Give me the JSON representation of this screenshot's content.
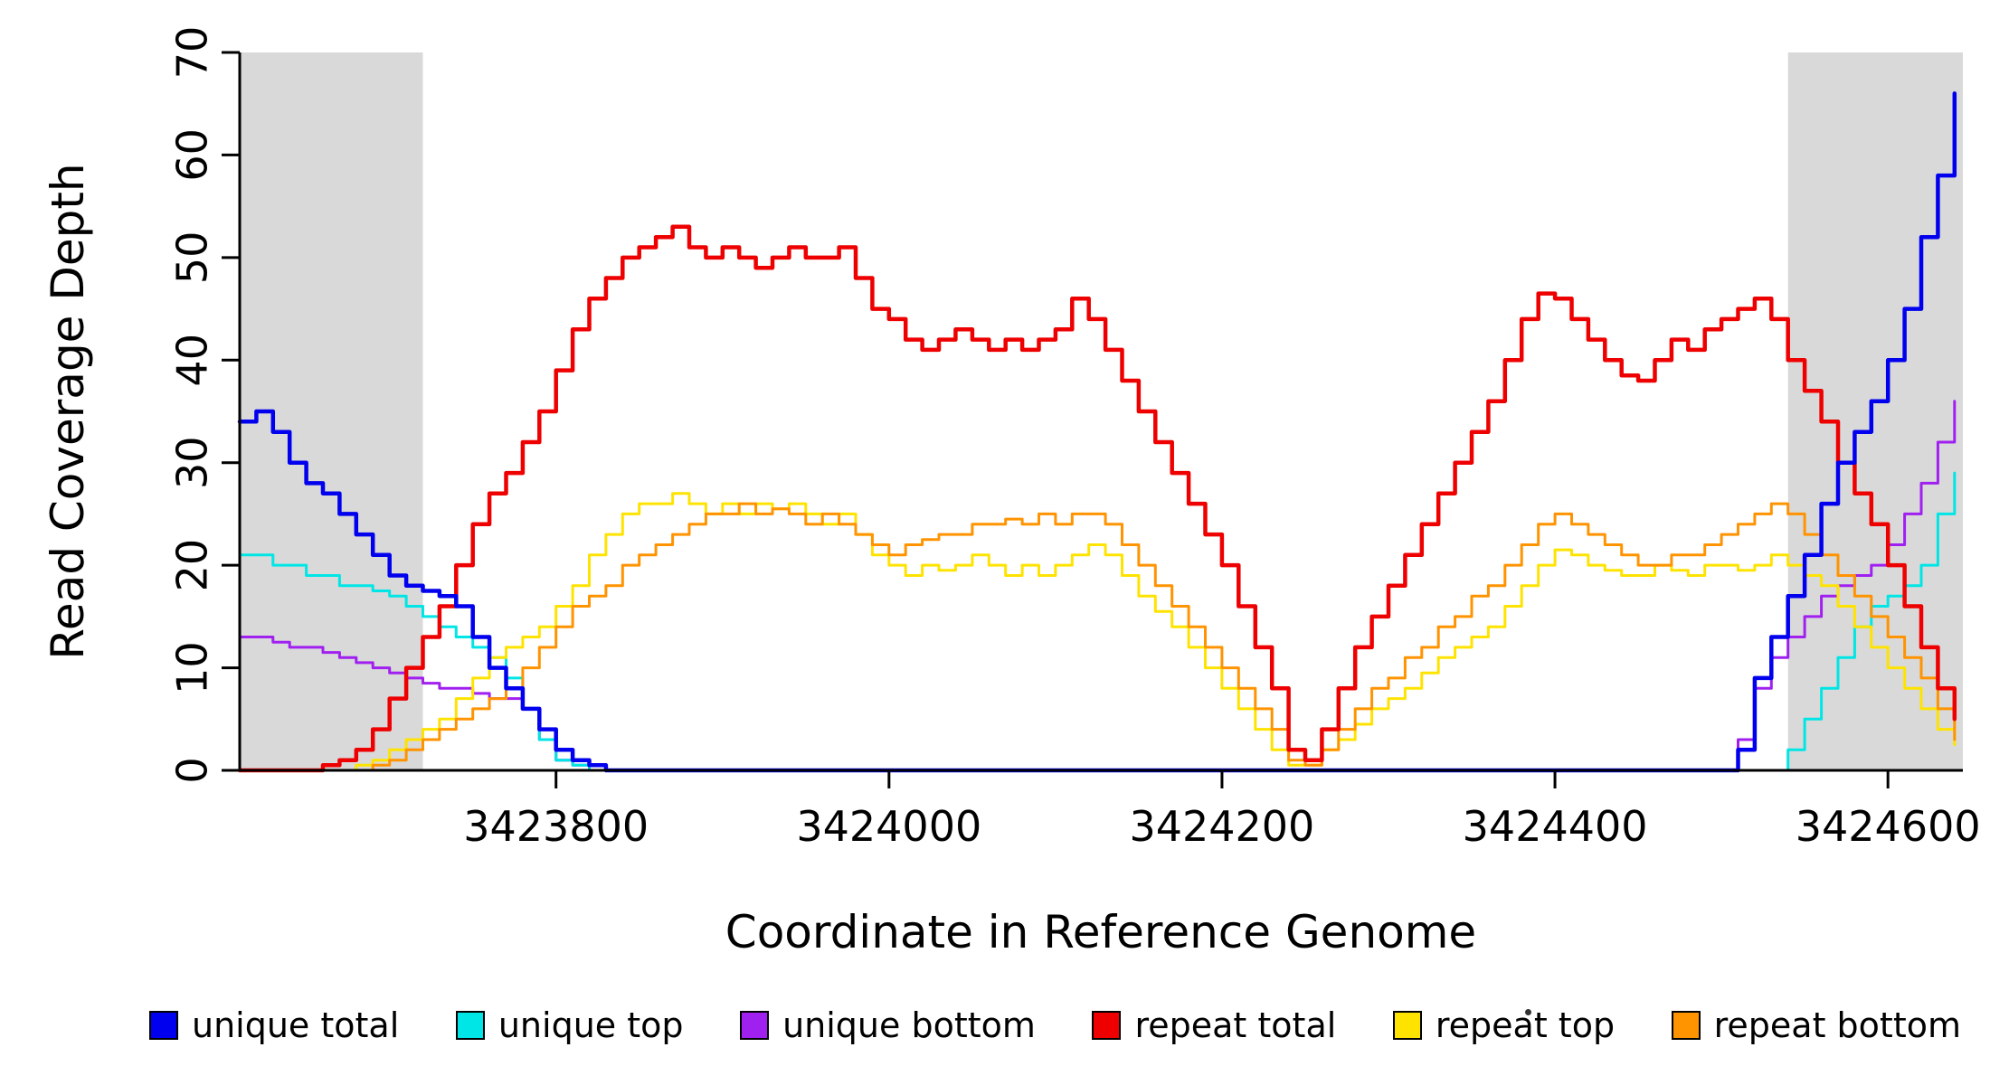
{
  "chart_data": {
    "type": "line",
    "xlabel": "Coordinate in Reference Genome",
    "ylabel": "Read Coverage Depth",
    "xlim": [
      3423610,
      3424645
    ],
    "ylim": [
      0,
      70
    ],
    "x_ticks": [
      3423800,
      3424000,
      3424200,
      3424400,
      3424600
    ],
    "y_ticks": [
      0,
      10,
      20,
      30,
      40,
      50,
      60,
      70
    ],
    "grid": false,
    "legend_position": "bottom",
    "shaded_regions": [
      [
        3423610,
        3423720
      ],
      [
        3424540,
        3424645
      ]
    ],
    "colors": {
      "band": "#D9D9D9",
      "axis": "#000000",
      "background": "#FFFFFF"
    },
    "x_start": 3423610,
    "x_step": 10,
    "n_points": 104,
    "series": [
      {
        "name": "unique total",
        "color": "#0000EE",
        "width": 4.5,
        "values": [
          34,
          35,
          33,
          30,
          28,
          27,
          25,
          23,
          21,
          19,
          18,
          17.5,
          17,
          16,
          13,
          10,
          8,
          6,
          4,
          2,
          1,
          0.5,
          0,
          0,
          0,
          0,
          0,
          0,
          0,
          0,
          0,
          0,
          0,
          0,
          0,
          0,
          0,
          0,
          0,
          0,
          0,
          0,
          0,
          0,
          0,
          0,
          0,
          0,
          0,
          0,
          0,
          0,
          0,
          0,
          0,
          0,
          0,
          0,
          0,
          0,
          0,
          0,
          0,
          0,
          0,
          0,
          0,
          0,
          0,
          0,
          0,
          0,
          0,
          0,
          0,
          0,
          0,
          0,
          0,
          0,
          0,
          0,
          0,
          0,
          0,
          0,
          0,
          0,
          0,
          0,
          2,
          9,
          13,
          17,
          21,
          26,
          30,
          33,
          36,
          40,
          45,
          52,
          58,
          66
        ]
      },
      {
        "name": "unique top",
        "color": "#00E5E5",
        "width": 3,
        "values": [
          21,
          21,
          20,
          20,
          19,
          19,
          18,
          18,
          17.5,
          17,
          16,
          15,
          14,
          13,
          12,
          11,
          9,
          6,
          3,
          1,
          0.5,
          0,
          0,
          0,
          0,
          0,
          0,
          0,
          0,
          0,
          0,
          0,
          0,
          0,
          0,
          0,
          0,
          0,
          0,
          0,
          0,
          0,
          0,
          0,
          0,
          0,
          0,
          0,
          0,
          0,
          0,
          0,
          0,
          0,
          0,
          0,
          0,
          0,
          0,
          0,
          0,
          0,
          0,
          0,
          0,
          0,
          0,
          0,
          0,
          0,
          0,
          0,
          0,
          0,
          0,
          0,
          0,
          0,
          0,
          0,
          0,
          0,
          0,
          0,
          0,
          0,
          0,
          0,
          0,
          0,
          0,
          0,
          0,
          2,
          5,
          8,
          11,
          14,
          16,
          17,
          18,
          20,
          25,
          29
        ]
      },
      {
        "name": "unique bottom",
        "color": "#A020F0",
        "width": 3,
        "values": [
          13,
          13,
          12.5,
          12,
          12,
          11.5,
          11,
          10.5,
          10,
          9.5,
          9,
          8.5,
          8,
          8,
          7.5,
          7,
          7,
          6,
          3,
          1,
          0.5,
          0,
          0,
          0,
          0,
          0,
          0,
          0,
          0,
          0,
          0,
          0,
          0,
          0,
          0,
          0,
          0,
          0,
          0,
          0,
          0,
          0,
          0,
          0,
          0,
          0,
          0,
          0,
          0,
          0,
          0,
          0,
          0,
          0,
          0,
          0,
          0,
          0,
          0,
          0,
          0,
          0,
          0,
          0,
          0,
          0,
          0,
          0,
          0,
          0,
          0,
          0,
          0,
          0,
          0,
          0,
          0,
          0,
          0,
          0,
          0,
          0,
          0,
          0,
          0,
          0,
          0,
          0,
          0,
          0,
          3,
          8,
          11,
          13,
          15,
          17,
          18,
          19,
          20,
          22,
          25,
          28,
          32,
          36
        ]
      },
      {
        "name": "repeat total",
        "color": "#EE0000",
        "width": 4.5,
        "values": [
          0,
          0,
          0,
          0,
          0,
          0.5,
          1,
          2,
          4,
          7,
          10,
          13,
          16,
          20,
          24,
          27,
          29,
          32,
          35,
          39,
          43,
          46,
          48,
          50,
          51,
          52,
          53,
          51,
          50,
          51,
          50,
          49,
          50,
          51,
          50,
          50,
          51,
          48,
          45,
          44,
          42,
          41,
          42,
          43,
          42,
          41,
          42,
          41,
          42,
          43,
          46,
          44,
          41,
          38,
          35,
          32,
          29,
          26,
          23,
          20,
          16,
          12,
          8,
          2,
          1,
          4,
          8,
          12,
          15,
          18,
          21,
          24,
          27,
          30,
          33,
          36,
          40,
          44,
          46.5,
          46,
          44,
          42,
          40,
          38.5,
          38,
          40,
          42,
          41,
          43,
          44,
          45,
          46,
          44,
          40,
          37,
          34,
          30,
          27,
          24,
          20,
          16,
          12,
          8,
          5
        ]
      },
      {
        "name": "repeat top",
        "color": "#FFE300",
        "width": 3,
        "values": [
          0,
          0,
          0,
          0,
          0,
          0,
          0,
          0.5,
          1,
          2,
          3,
          4,
          5,
          7,
          9,
          11,
          12,
          13,
          14,
          16,
          18,
          21,
          23,
          25,
          26,
          26,
          27,
          26,
          25,
          26,
          25,
          26,
          25.5,
          26,
          25,
          24,
          25,
          23,
          21,
          20,
          19,
          20,
          19.5,
          20,
          21,
          20,
          19,
          20,
          19,
          20,
          21,
          22,
          21,
          19,
          17,
          15.5,
          14,
          12,
          10,
          8,
          6,
          4,
          2,
          0.5,
          0.5,
          2,
          3,
          4.5,
          6,
          7,
          8,
          9.5,
          11,
          12,
          13,
          14,
          16,
          18,
          20,
          21.5,
          21,
          20,
          19.5,
          19,
          19,
          20,
          19.5,
          19,
          20,
          20,
          19.5,
          20,
          21,
          20,
          19,
          18,
          16,
          14,
          12,
          10,
          8,
          6,
          4,
          2.5
        ]
      },
      {
        "name": "repeat bottom",
        "color": "#FF9300",
        "width": 3,
        "values": [
          0,
          0,
          0,
          0,
          0,
          0,
          0,
          0,
          0.5,
          1,
          2,
          3,
          4,
          5,
          6,
          7,
          8,
          10,
          12,
          14,
          16,
          17,
          18,
          20,
          21,
          22,
          23,
          24,
          25,
          25,
          26,
          25,
          25.5,
          25,
          24,
          25,
          24,
          23,
          22,
          21,
          22,
          22.5,
          23,
          23,
          24,
          24,
          24.5,
          24,
          25,
          24,
          25,
          25,
          24,
          22,
          20,
          18,
          16,
          14,
          12,
          10,
          8,
          6,
          4,
          1,
          0.5,
          2,
          4,
          6,
          8,
          9,
          11,
          12,
          14,
          15,
          17,
          18,
          20,
          22,
          24,
          25,
          24,
          23,
          22,
          21,
          20,
          20,
          21,
          21,
          22,
          23,
          24,
          25,
          26,
          25,
          23,
          21,
          19,
          17,
          15,
          13,
          11,
          9,
          6,
          3
        ]
      }
    ]
  }
}
